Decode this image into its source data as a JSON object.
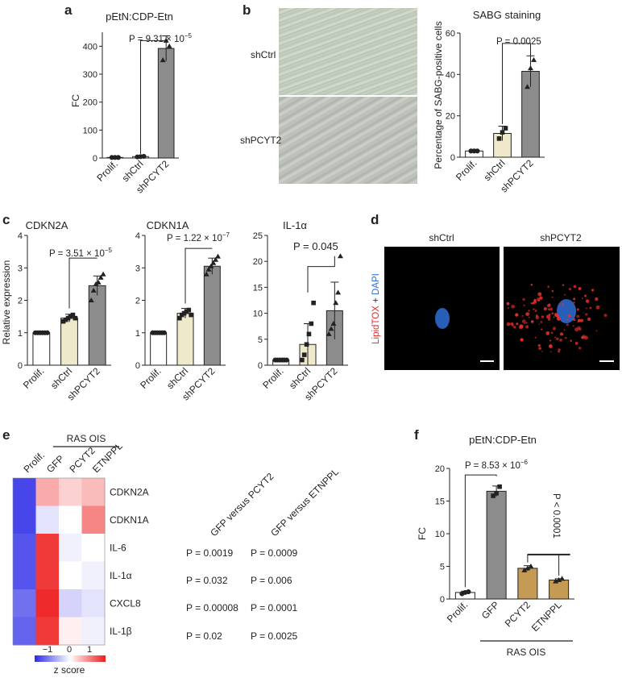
{
  "panels": {
    "a": {
      "letter": "a",
      "title": "pEtN:CDP-Etn",
      "ylabel": "FC",
      "pvalue": "P = 9.31 × 10",
      "pvalue_exp": "−5",
      "yticks": [
        "0",
        "100",
        "200",
        "300",
        "400"
      ],
      "categories": [
        "Prolif.",
        "shCtrl",
        "shPCYT2"
      ]
    },
    "b": {
      "letter": "b",
      "title": "SABG staining",
      "ylabel": "Percentage of SABG-positive cells",
      "pvalue": "P = 0.0025",
      "yticks": [
        "0",
        "20",
        "40",
        "60"
      ],
      "categories": [
        "Prolif.",
        "shCtrl",
        "shPCYT2"
      ],
      "image_labels": [
        "shCtrl",
        "shPCYT2"
      ]
    },
    "c": {
      "letter": "c",
      "ylabel": "Relative expression",
      "subplots": [
        {
          "title": "CDKN2A",
          "pvalue": "P = 3.51 × 10",
          "pvalue_exp": "−5",
          "yticks": [
            "0",
            "1",
            "2",
            "3",
            "4"
          ]
        },
        {
          "title": "CDKN1A",
          "pvalue": "P = 1.22 × 10",
          "pvalue_exp": "−7",
          "yticks": [
            "0",
            "1",
            "2",
            "3",
            "4"
          ]
        },
        {
          "title": "IL-1α",
          "pvalue": "P = 0.045",
          "pvalue_exp": "",
          "yticks": [
            "0",
            "5",
            "10",
            "15",
            "20",
            "25"
          ]
        }
      ],
      "categories": [
        "Prolif.",
        "shCtrl",
        "shPCYT2"
      ]
    },
    "d": {
      "letter": "d",
      "labels": [
        "shCtrl",
        "shPCYT2"
      ],
      "stain_red": "LipidTOX",
      "stain_plus": " + ",
      "stain_blue": "DAPI"
    },
    "e": {
      "letter": "e",
      "group_label": "RAS OIS",
      "columns": [
        "Prolif.",
        "GFP",
        "PCYT2",
        "ETNPPL"
      ],
      "rows": [
        "CDKN2A",
        "CDKN1A",
        "IL-6",
        "IL-1α",
        "CXCL8",
        "IL-1β"
      ],
      "comparisons": [
        "GFP versus PCYT2",
        "GFP versus ETNPPL"
      ],
      "pvalues": [
        [
          "P = 0.0019",
          "P = 0.0009"
        ],
        [
          "P = 0.032",
          "P = 0.006"
        ],
        [
          "P = 0.00008",
          "P = 0.0001"
        ],
        [
          "P = 0.02",
          "P = 0.0025"
        ]
      ],
      "scale_ticks": [
        "−1",
        "0",
        "1"
      ],
      "scale_label": "z score"
    },
    "f": {
      "letter": "f",
      "title": "pEtN:CDP-Etn",
      "ylabel": "FC",
      "pvalue": "P = 8.53 × 10",
      "pvalue_exp": "−6",
      "pvalue2": "P < 0.0001",
      "yticks": [
        "0",
        "5",
        "10",
        "15",
        "20"
      ],
      "categories": [
        "Prolif.",
        "GFP",
        "PCYT2",
        "ETNPPL"
      ],
      "group_label": "RAS OIS"
    }
  },
  "colors": {
    "white_bar": "#ffffff",
    "cream_bar": "#efe9cc",
    "gray_bar": "#8c8c8c",
    "tan_bar": "#c49a54",
    "heat_red": "#ee1b1b",
    "heat_blue": "#2a2ae8",
    "lipid_red": "#e0302a",
    "dapi_blue": "#2f6fd8"
  },
  "chart_data": [
    {
      "type": "bar",
      "panel": "a",
      "title": "pEtN:CDP-Etn",
      "ylabel": "FC",
      "categories": [
        "Prolif.",
        "shCtrl",
        "shPCYT2"
      ],
      "values": [
        2,
        5,
        392
      ],
      "errors": [
        1,
        2,
        45
      ],
      "ylim": [
        0,
        450
      ],
      "pvalue": "P = 9.31 × 10−5"
    },
    {
      "type": "bar",
      "panel": "b",
      "title": "SABG staining",
      "ylabel": "Percentage of SABG-positive cells",
      "categories": [
        "Prolif.",
        "shCtrl",
        "shPCYT2"
      ],
      "values": [
        3,
        11.5,
        41.5
      ],
      "errors": [
        0.8,
        3.5,
        7.5
      ],
      "ylim": [
        0,
        60
      ],
      "pvalue": "P = 0.0025"
    },
    {
      "type": "bar",
      "panel": "c-CDKN2A",
      "title": "CDKN2A",
      "ylabel": "Relative expression",
      "categories": [
        "Prolif.",
        "shCtrl",
        "shPCYT2"
      ],
      "values": [
        1.0,
        1.45,
        2.45
      ],
      "errors": [
        0,
        0.12,
        0.3
      ],
      "ylim": [
        0,
        4
      ],
      "pvalue": "P = 3.51 × 10−5"
    },
    {
      "type": "bar",
      "panel": "c-CDKN1A",
      "title": "CDKN1A",
      "categories": [
        "Prolif.",
        "shCtrl",
        "shPCYT2"
      ],
      "values": [
        1.0,
        1.6,
        3.05
      ],
      "errors": [
        0,
        0.15,
        0.25
      ],
      "ylim": [
        0,
        4
      ],
      "pvalue": "P = 1.22 × 10−7"
    },
    {
      "type": "bar",
      "panel": "c-IL-1α",
      "title": "IL-1α",
      "categories": [
        "Prolif.",
        "shCtrl",
        "shPCYT2"
      ],
      "values": [
        1.0,
        4.0,
        10.5
      ],
      "errors": [
        0,
        4,
        5.5
      ],
      "ylim": [
        0,
        25
      ],
      "pvalue": "P = 0.045"
    },
    {
      "type": "heatmap",
      "panel": "e",
      "x": [
        "Prolif.",
        "GFP",
        "PCYT2",
        "ETNPPL"
      ],
      "y": [
        "CDKN2A",
        "CDKN1A",
        "IL-6",
        "IL-1α",
        "CXCL8",
        "IL-1β"
      ],
      "values": [
        [
          -1.3,
          0.55,
          0.3,
          0.45
        ],
        [
          -1.3,
          -0.2,
          0.0,
          0.8
        ],
        [
          -1.2,
          1.3,
          -0.1,
          0.0
        ],
        [
          -1.2,
          1.3,
          0.0,
          -0.1
        ],
        [
          -1.0,
          1.4,
          -0.3,
          -0.2
        ],
        [
          -1.1,
          1.3,
          0.1,
          -0.1
        ]
      ],
      "scale": [
        -1,
        0,
        1
      ],
      "scale_label": "z score"
    },
    {
      "type": "bar",
      "panel": "f",
      "title": "pEtN:CDP-Etn",
      "ylabel": "FC",
      "categories": [
        "Prolif.",
        "GFP",
        "PCYT2",
        "ETNPPL"
      ],
      "values": [
        1.0,
        16.5,
        4.7,
        2.9
      ],
      "errors": [
        0.2,
        0.8,
        0.4,
        0.2
      ],
      "ylim": [
        0,
        20
      ],
      "pvalue": "P = 8.53 × 10−6",
      "pvalue2": "P < 0.0001"
    }
  ]
}
